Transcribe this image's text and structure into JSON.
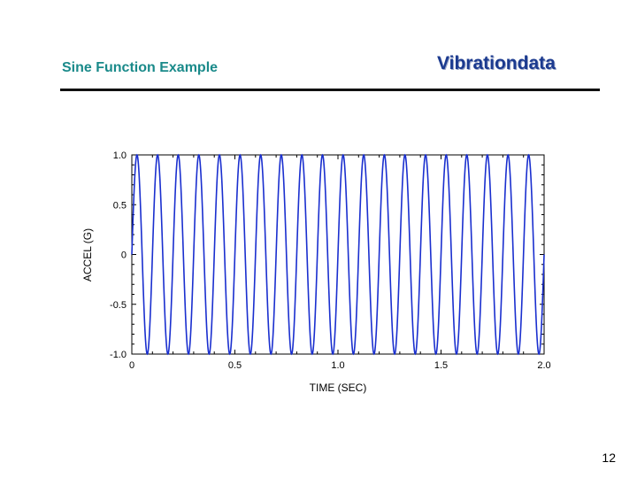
{
  "slide": {
    "title": "Sine Function Example",
    "brand": "Vibrationdata",
    "page_number": "12"
  },
  "chart_data": {
    "type": "line",
    "title": "",
    "xlabel": "TIME (SEC)",
    "ylabel": "ACCEL (G)",
    "xlim": [
      0,
      2.0
    ],
    "ylim": [
      -1.0,
      1.0
    ],
    "x_ticks": [
      "0",
      "0.5",
      "1.0",
      "1.5",
      "2.0"
    ],
    "y_ticks": [
      "1.0",
      "0.5",
      "0",
      "-0.5",
      "-1.0"
    ],
    "grid": false,
    "series": [
      {
        "function": "sin(2*pi*f*t)",
        "amplitude": 1.0,
        "frequency_hz": 10,
        "color": "#1a2fcf"
      }
    ]
  }
}
